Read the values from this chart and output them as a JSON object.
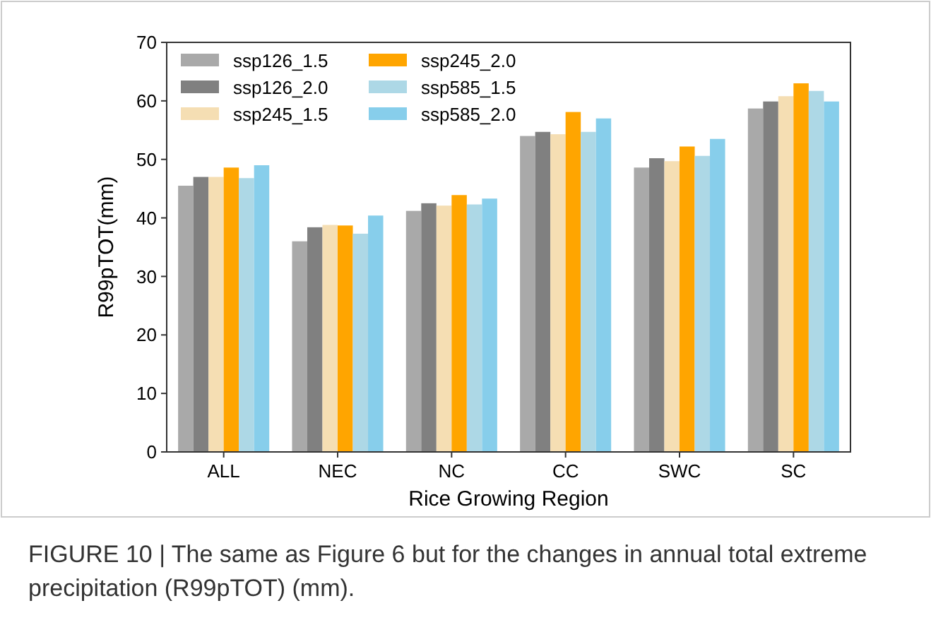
{
  "chart_data": {
    "type": "bar",
    "xlabel": "Rice Growing Region",
    "ylabel": "R99pTOT(mm)",
    "categories": [
      "ALL",
      "NEC",
      "NC",
      "CC",
      "SWC",
      "SC"
    ],
    "series": [
      {
        "name": "ssp126_1.5",
        "color": "#a9a9a9",
        "values": [
          45.5,
          36,
          41.2,
          54,
          48.6,
          58.7
        ]
      },
      {
        "name": "ssp126_2.0",
        "color": "#808080",
        "values": [
          47,
          38.4,
          42.5,
          54.7,
          50.2,
          59.9
        ]
      },
      {
        "name": "ssp245_1.5",
        "color": "#f5deb3",
        "values": [
          47,
          38.8,
          42.1,
          54.3,
          49.7,
          60.8
        ]
      },
      {
        "name": "ssp245_2.0",
        "color": "#ffa500",
        "values": [
          48.6,
          38.7,
          43.9,
          58.1,
          52.2,
          63
        ]
      },
      {
        "name": "ssp585_1.5",
        "color": "#add8e6",
        "values": [
          46.8,
          37.3,
          42.3,
          54.7,
          50.6,
          61.7
        ]
      },
      {
        "name": "ssp585_2.0",
        "color": "#87ceeb",
        "values": [
          49,
          40.4,
          43.3,
          57,
          53.5,
          59.9
        ]
      }
    ],
    "ylim": [
      0,
      70
    ],
    "yticks": [
      0,
      10,
      20,
      30,
      40,
      50,
      60,
      70
    ],
    "legend": "top left",
    "annotations": [
      "FIGURE 10 | The same as Figure 6 but for the changes in annual total extreme precipitation (R99pTOT) (mm)."
    ]
  }
}
